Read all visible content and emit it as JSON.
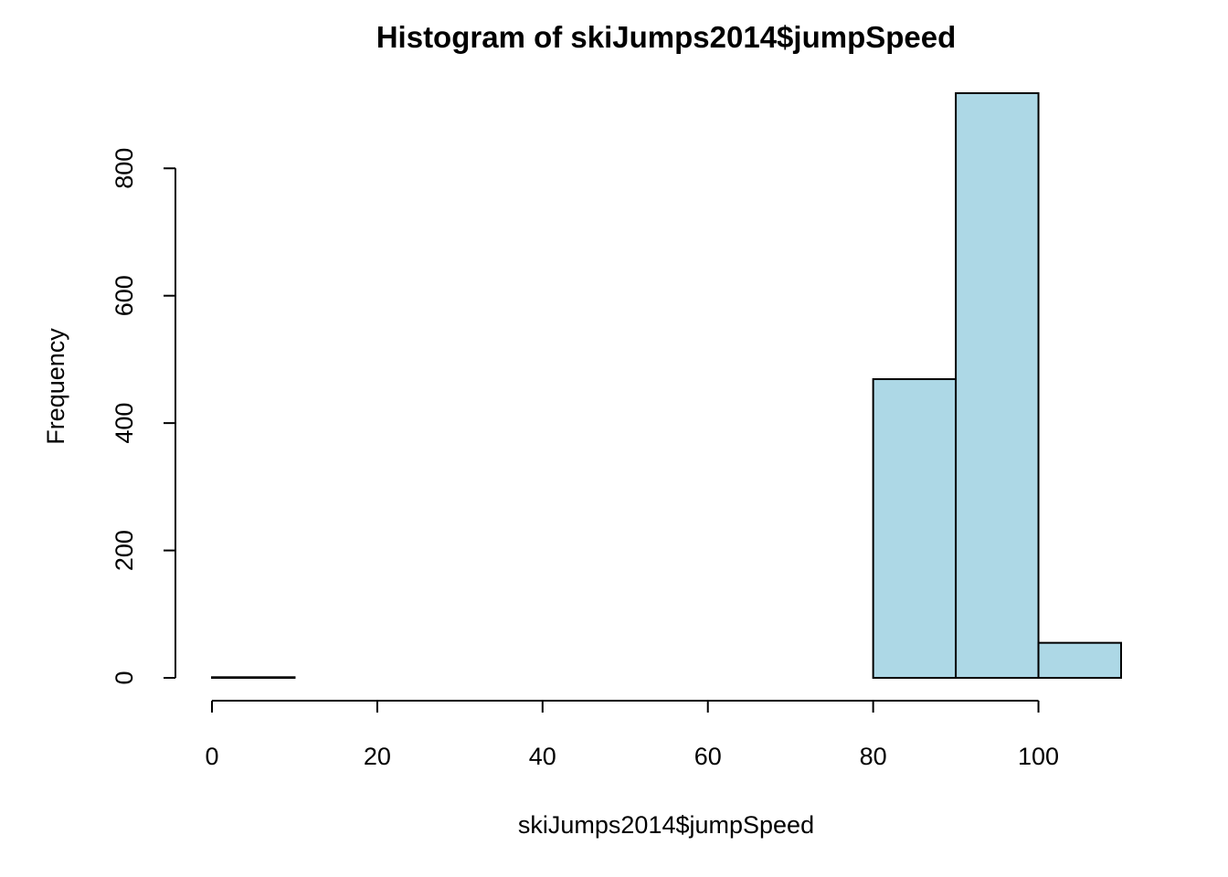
{
  "chart_data": {
    "type": "bar",
    "title": "Histogram of skiJumps2014$jumpSpeed",
    "xlabel": "skiJumps2014$jumpSpeed",
    "ylabel": "Frequency",
    "bin_edges": [
      0,
      10,
      20,
      30,
      40,
      50,
      60,
      70,
      80,
      90,
      100,
      110
    ],
    "values": [
      1,
      0,
      0,
      0,
      0,
      0,
      0,
      0,
      469,
      918,
      55
    ],
    "xlim": [
      0,
      110
    ],
    "ylim": [
      0,
      918
    ],
    "x_ticks": [
      0,
      20,
      40,
      60,
      80,
      100
    ],
    "y_ticks": [
      0,
      200,
      400,
      600,
      800
    ],
    "bar_color": "#add8e6",
    "border_color": "#000000",
    "grid": false
  }
}
